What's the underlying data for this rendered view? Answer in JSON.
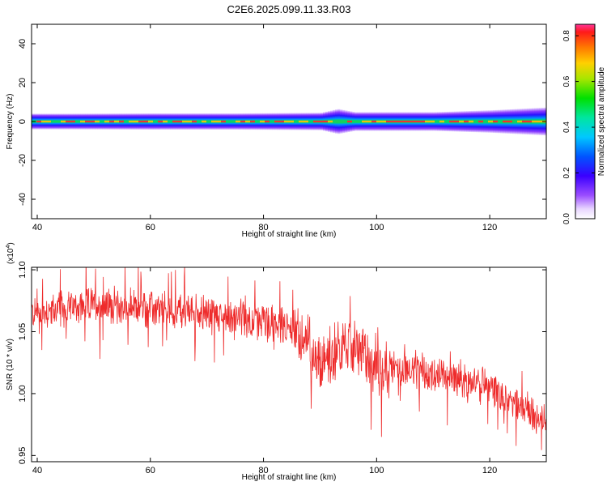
{
  "title": "C2E6.2025.099.11.33.R03",
  "chart_data": [
    {
      "type": "heatmap",
      "xlabel": "Height of straight line (km)",
      "ylabel": "Frequency (Hz)",
      "xlim": [
        39,
        130
      ],
      "ylim": [
        -50,
        50
      ],
      "xticks": [
        40,
        60,
        80,
        100,
        120
      ],
      "yticks": [
        -40,
        -20,
        0,
        20,
        40
      ],
      "band": {
        "x": [
          39,
          45,
          60,
          75,
          90,
          93,
          96,
          110,
          120,
          130
        ],
        "half_width_hz": [
          2.5,
          2.5,
          2.6,
          2.6,
          2.8,
          4.0,
          3.0,
          3.0,
          3.6,
          4.5
        ],
        "center_hz": 0,
        "note_free": true
      },
      "colorbar": {
        "label": "Normalized spectral amplitude",
        "range": [
          0,
          0.85
        ],
        "ticks": [
          0.0,
          0.2,
          0.4,
          0.6,
          0.8
        ],
        "tick_labels": [
          "0.0",
          "0.2",
          "0.4",
          "0.6",
          "0.8"
        ]
      }
    },
    {
      "type": "line",
      "xlabel": "Height of straight line (km)",
      "ylabel": "SNR (10 * v/v)",
      "y_multiplier_label": "(x10",
      "y_multiplier_exp": "4",
      "xlim": [
        39,
        130
      ],
      "ylim": [
        0.945,
        1.102
      ],
      "xticks": [
        40,
        60,
        80,
        100,
        120
      ],
      "yticks": [
        0.95,
        1.0,
        1.05,
        1.1
      ],
      "ytick_labels": [
        "0.95",
        "1.00",
        "1.05",
        "1.10"
      ],
      "color": "#ee2b2b",
      "trend_x": [
        39,
        50,
        60,
        70,
        80,
        85,
        88,
        90,
        93,
        96,
        100,
        105,
        110,
        115,
        120,
        125,
        130
      ],
      "trend_y": [
        1.065,
        1.072,
        1.068,
        1.065,
        1.058,
        1.052,
        1.04,
        1.025,
        1.035,
        1.038,
        1.022,
        1.02,
        1.015,
        1.012,
        1.005,
        0.99,
        0.98
      ],
      "noise_amplitude": 0.018,
      "points": 1400
    }
  ]
}
